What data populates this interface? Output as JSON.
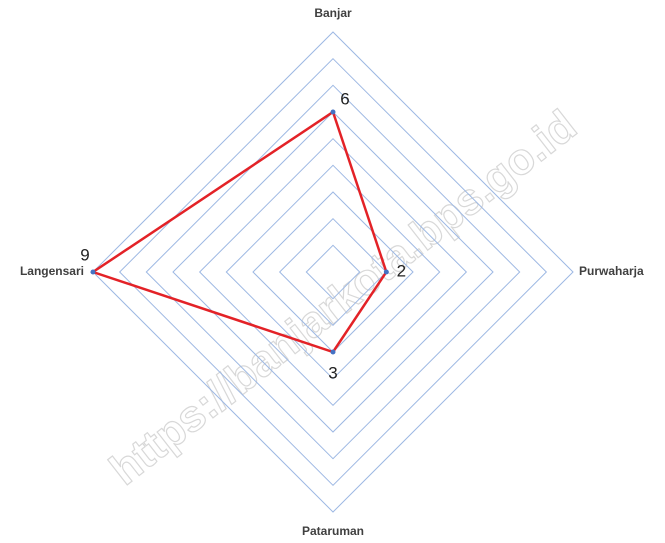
{
  "chart_data": {
    "type": "radar",
    "categories": [
      "Banjar",
      "Purwaharja",
      "Pataruman",
      "Langensari"
    ],
    "values": [
      6,
      2,
      3,
      9
    ],
    "color": "#e32227",
    "grid_color": "#9db8e3",
    "ylim": [
      0,
      9
    ],
    "yticks": [
      0,
      1,
      2,
      3,
      4,
      5,
      6,
      7,
      8,
      9
    ],
    "grid": true
  },
  "watermark": "https://banjarkota.bps.go.id"
}
